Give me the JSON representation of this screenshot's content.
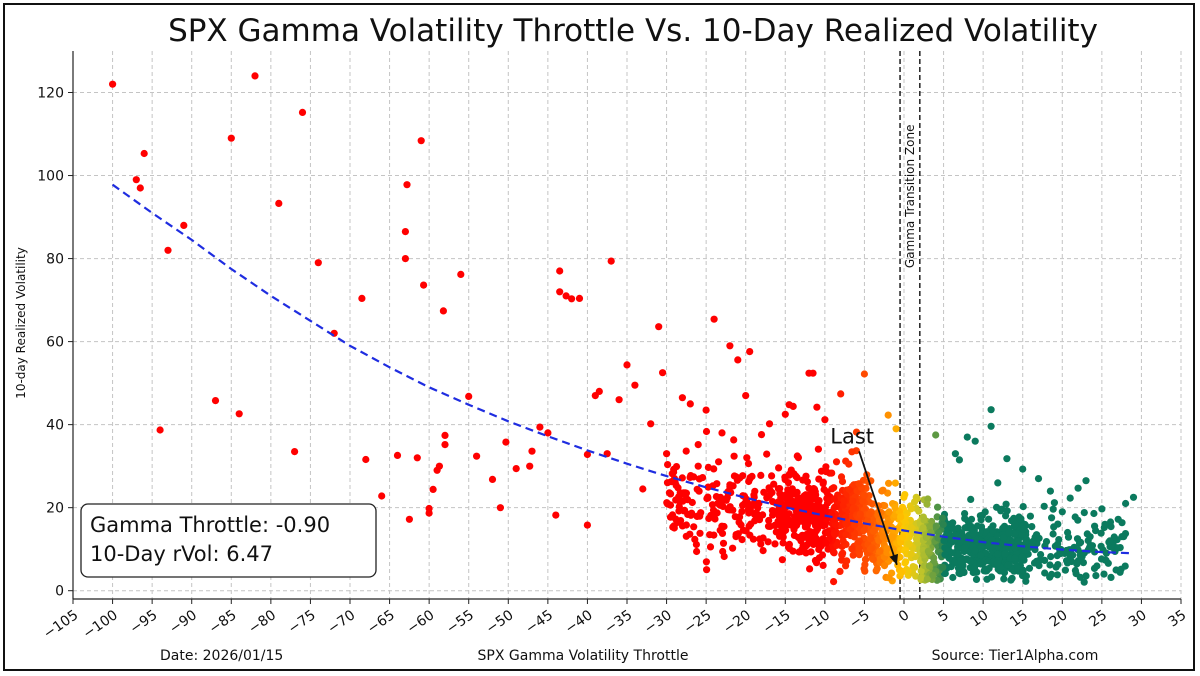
{
  "chart_data": {
    "type": "scatter",
    "title": "SPX Gamma Volatility Throttle Vs. 10-Day Realized Volatility",
    "xlabel": "SPX Gamma Volatility Throttle",
    "ylabel": "10-day Realized Volatility",
    "xlim": [
      -105,
      35
    ],
    "ylim": [
      -2,
      130
    ],
    "x_ticks": [
      -105,
      -100,
      -95,
      -90,
      -85,
      -80,
      -75,
      -70,
      -65,
      -60,
      -55,
      -50,
      -45,
      -40,
      -35,
      -30,
      -25,
      -20,
      -15,
      -10,
      -5,
      0,
      5,
      10,
      15,
      20,
      25,
      30,
      35
    ],
    "y_ticks": [
      0,
      20,
      40,
      60,
      80,
      100,
      120
    ],
    "grid": true,
    "colors": {
      "negative": "#ff0000",
      "transition": "#ffb000",
      "positive": "#0b7a5e",
      "fit": "#1f2de0"
    },
    "transition_zone": {
      "label": "Gamma Transition Zone",
      "x_range": [
        -0.5,
        2.0
      ]
    },
    "fit_curve": {
      "style": "dashed",
      "points": [
        [
          -100,
          97.8
        ],
        [
          -95,
          91
        ],
        [
          -90,
          84.5
        ],
        [
          -85,
          77.5
        ],
        [
          -80,
          71
        ],
        [
          -75,
          65
        ],
        [
          -70,
          59
        ],
        [
          -65,
          53.8
        ],
        [
          -60,
          49
        ],
        [
          -55,
          44.8
        ],
        [
          -50,
          40.8
        ],
        [
          -45,
          37.2
        ],
        [
          -40,
          33.8
        ],
        [
          -35,
          30.6
        ],
        [
          -30,
          27.6
        ],
        [
          -25,
          24.9
        ],
        [
          -20,
          22.4
        ],
        [
          -15,
          20.1
        ],
        [
          -10,
          18.1
        ],
        [
          -5,
          16.2
        ],
        [
          0,
          14.5
        ],
        [
          5,
          13
        ],
        [
          10,
          11.7
        ],
        [
          15,
          10.7
        ],
        [
          20,
          9.9
        ],
        [
          25,
          9.3
        ],
        [
          29,
          9.0
        ]
      ]
    },
    "points_outliers": [
      [
        -100,
        122
      ],
      [
        -96,
        105.3
      ],
      [
        -96.5,
        97
      ],
      [
        -97,
        99
      ],
      [
        -94,
        38.7
      ],
      [
        -93,
        82
      ],
      [
        -91,
        88
      ],
      [
        -87,
        45.8
      ],
      [
        -85,
        109
      ],
      [
        -84,
        42.6
      ],
      [
        -82,
        124
      ],
      [
        -79,
        93.3
      ],
      [
        -77,
        33.5
      ],
      [
        -76,
        115.2
      ],
      [
        -74,
        79
      ],
      [
        -72,
        62
      ],
      [
        -68.5,
        70.4
      ],
      [
        -68,
        31.6
      ],
      [
        -66,
        22.8
      ],
      [
        -64,
        32.6
      ],
      [
        -63,
        86.5
      ],
      [
        -62.8,
        97.8
      ],
      [
        -63,
        80
      ],
      [
        -62.5,
        17.2
      ],
      [
        -61.5,
        32
      ],
      [
        -61,
        108.4
      ],
      [
        -60.7,
        73.6
      ],
      [
        -60,
        18.7
      ],
      [
        -60,
        19.8
      ],
      [
        -59.5,
        24.4
      ],
      [
        -59,
        29
      ],
      [
        -58.7,
        30
      ],
      [
        -58.2,
        67.4
      ],
      [
        -58,
        35.2
      ],
      [
        -58,
        37.4
      ],
      [
        -56,
        76.2
      ],
      [
        -55,
        46.8
      ],
      [
        -54,
        32.4
      ],
      [
        -52,
        26.8
      ],
      [
        -51,
        20
      ],
      [
        -50.3,
        35.8
      ],
      [
        -49,
        29.4
      ],
      [
        -47.3,
        30
      ],
      [
        -47,
        33.6
      ],
      [
        -46,
        39.4
      ],
      [
        -45,
        38
      ],
      [
        -44,
        18.2
      ],
      [
        -43.5,
        77
      ],
      [
        -43.5,
        72
      ],
      [
        -42.7,
        71
      ],
      [
        -42,
        70.3
      ],
      [
        -41,
        70.4
      ],
      [
        -40,
        15.8
      ],
      [
        -40,
        32.8
      ],
      [
        -39,
        47
      ],
      [
        -38.5,
        48
      ],
      [
        -37.5,
        33
      ],
      [
        -37,
        79.4
      ],
      [
        -36,
        46
      ],
      [
        -35,
        54.4
      ],
      [
        -34,
        49.5
      ],
      [
        -33,
        24.5
      ],
      [
        -32,
        40.2
      ],
      [
        -31,
        63.6
      ],
      [
        -30.5,
        52.5
      ],
      [
        -30,
        33
      ],
      [
        -29,
        27
      ],
      [
        -28,
        46.5
      ],
      [
        -27,
        45
      ],
      [
        -26,
        30
      ],
      [
        -25,
        43.5
      ],
      [
        -24,
        65.4
      ],
      [
        -23,
        38
      ],
      [
        -22,
        59
      ],
      [
        -21,
        55.6
      ],
      [
        -20,
        47
      ],
      [
        -19.5,
        57.6
      ],
      [
        -18,
        37.6
      ],
      [
        -17,
        40.2
      ],
      [
        -15,
        42.5
      ],
      [
        -14.5,
        44.8
      ],
      [
        -14,
        44.4
      ],
      [
        -12,
        52.4
      ],
      [
        -11.5,
        52.4
      ],
      [
        -11,
        44.2
      ],
      [
        -10,
        41.2
      ],
      [
        -8,
        47.4
      ],
      [
        -6,
        38.2
      ],
      [
        -5,
        52.2
      ],
      [
        -2,
        42.3
      ],
      [
        -1,
        39
      ]
    ],
    "points_positive_outliers": [
      [
        4,
        37.5
      ],
      [
        6.5,
        33
      ],
      [
        7,
        31.5
      ],
      [
        8,
        37
      ],
      [
        9,
        36
      ],
      [
        11,
        43.6
      ],
      [
        11,
        39.6
      ],
      [
        13,
        31.8
      ],
      [
        15,
        29.3
      ],
      [
        17,
        27
      ],
      [
        18.5,
        24
      ],
      [
        19,
        21.2
      ],
      [
        20,
        19
      ],
      [
        21,
        22.3
      ],
      [
        22,
        24.7
      ],
      [
        23,
        26.5
      ],
      [
        24,
        18.6
      ],
      [
        25,
        19.7
      ],
      [
        26,
        12
      ],
      [
        27,
        10.3
      ],
      [
        28,
        21
      ],
      [
        29,
        22.5
      ]
    ],
    "cluster_seed": 20260115,
    "cluster_count": 1650
  },
  "labels": {
    "last": "Last",
    "info_line1": "Gamma Throttle: -0.90",
    "info_line2": "10-Day rVol: 6.47",
    "date": "Date: 2026/01/15",
    "source": "Source: Tier1Alpha.com"
  },
  "last_point": [
    -0.9,
    6.47
  ],
  "last_label_pos": [
    -1.5,
    35
  ]
}
